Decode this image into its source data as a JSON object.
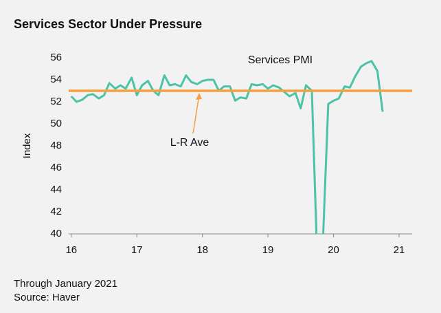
{
  "chart_data": {
    "type": "line",
    "title": "Services Sector Under Pressure",
    "ylabel": "Index",
    "x": [
      16,
      16.08,
      16.17,
      16.25,
      16.33,
      16.42,
      16.5,
      16.58,
      16.67,
      16.75,
      16.83,
      16.92,
      17,
      17.08,
      17.17,
      17.25,
      17.33,
      17.42,
      17.5,
      17.58,
      17.67,
      17.75,
      17.83,
      17.92,
      18,
      18.08,
      18.17,
      18.25,
      18.33,
      18.42,
      18.5,
      18.58,
      18.67,
      18.75,
      18.83,
      18.92,
      19,
      19.08,
      19.17,
      19.25,
      19.33,
      19.42,
      19.5,
      19.58,
      19.67,
      19.75,
      19.83,
      19.92,
      20,
      20.08,
      20.17,
      20.25,
      20.33,
      20.42,
      20.5,
      20.58,
      20.67,
      20.75
    ],
    "series": [
      {
        "name": "Services PMI",
        "color": "#4cc3a6",
        "values": [
          52.5,
          52.0,
          52.2,
          52.6,
          52.7,
          52.3,
          52.6,
          53.7,
          53.2,
          53.5,
          53.2,
          54.2,
          52.6,
          53.5,
          53.9,
          53.0,
          52.6,
          54.4,
          53.5,
          53.6,
          53.4,
          54.4,
          53.8,
          53.6,
          53.9,
          54.0,
          54.0,
          53.0,
          53.4,
          53.4,
          52.1,
          52.4,
          52.3,
          53.6,
          53.5,
          53.6,
          53.2,
          53.5,
          53.3,
          52.9,
          52.5,
          52.8,
          51.4,
          53.5,
          53.0,
          38,
          38,
          51.8,
          52.1,
          52.3,
          53.4,
          53.3,
          54.3,
          55.2,
          55.5,
          55.7,
          54.8,
          51.1
        ]
      }
    ],
    "reference_line": {
      "name": "L-R Ave",
      "value": 53,
      "color": "#f5a040"
    },
    "xlim": [
      15.96,
      21.2
    ],
    "xticks": [
      16,
      17,
      18,
      19,
      20,
      21
    ],
    "ylim": [
      40,
      56
    ],
    "yticks": [
      40,
      42,
      44,
      46,
      48,
      50,
      52,
      54,
      56
    ],
    "grid": false,
    "notes": [
      "Through January 2021",
      "Source: Haver"
    ]
  }
}
